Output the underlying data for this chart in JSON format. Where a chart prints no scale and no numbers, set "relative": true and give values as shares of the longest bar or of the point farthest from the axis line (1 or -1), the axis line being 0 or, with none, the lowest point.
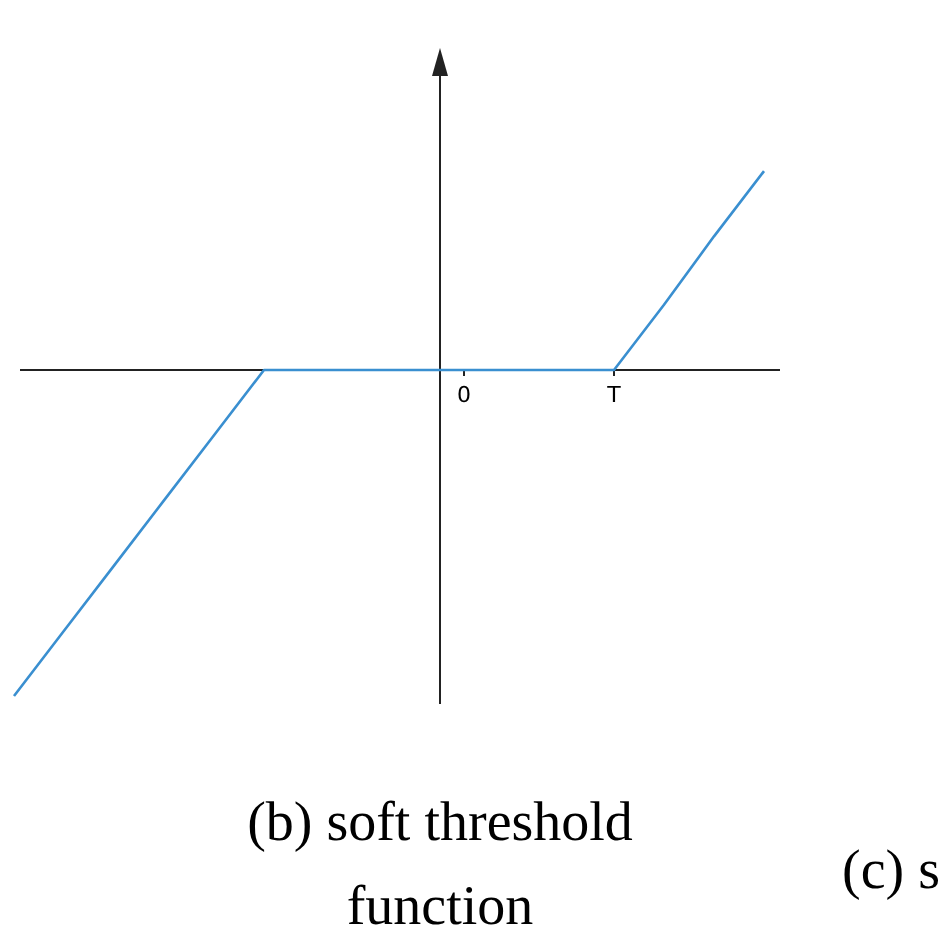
{
  "chart_data": {
    "type": "line",
    "title": "(b) soft threshold function",
    "relative": true,
    "categories": [
      null,
      null,
      null,
      null,
      null,
      null,
      null,
      null,
      null,
      "0",
      null,
      null,
      "T",
      null,
      null,
      null
    ],
    "series": [
      {
        "color": "#3a8fd0",
        "values": [
          -1,
          -0.8,
          -0.6,
          -0.4,
          -0.2,
          0,
          0,
          0,
          0,
          0,
          0,
          0,
          0,
          0.2,
          0.41,
          0.61
        ]
      }
    ],
    "annotations": [
      "(c) s"
    ],
    "grid": false,
    "marker": "none",
    "line_style": "solid"
  }
}
